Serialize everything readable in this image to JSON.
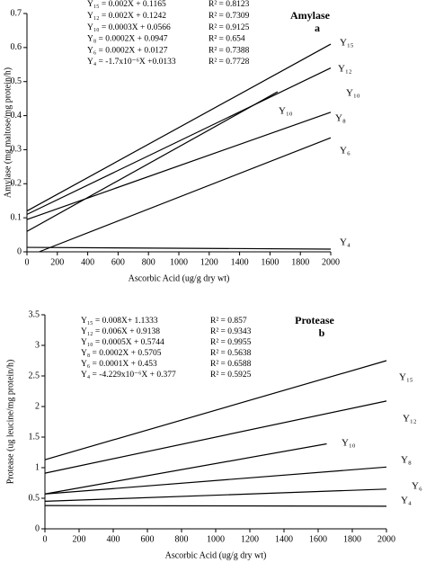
{
  "chart_data": [
    {
      "type": "line",
      "title": "Amylase",
      "subtitle": "a",
      "x_label": "Ascorbic Acid (ug/g dry wt)",
      "y_label": "Amylase (mg maltose/mg protein/h)",
      "xlim": [
        0,
        2000
      ],
      "xticks": [
        0,
        200,
        400,
        600,
        800,
        1000,
        1200,
        1400,
        1600,
        1800,
        2000
      ],
      "ylim": [
        0,
        0.7
      ],
      "yticks": [
        0,
        0.1,
        0.2,
        0.3,
        0.4,
        0.5,
        0.6,
        0.7
      ],
      "equations": [
        {
          "equation": "Y₁₅ = 0.002X + 0.1165",
          "r2": "R² = 0.8123"
        },
        {
          "equation": "Y₁₂ = 0.002X + 0.1242",
          "r2": "R² = 0.7309"
        },
        {
          "equation": "Y₁₀ = 0.0003X + 0.0566",
          "r2": "R² = 0.9125"
        },
        {
          "equation": "Y₈ = 0.0002X + 0.0947",
          "r2": "R² = 0.654"
        },
        {
          "equation": "Y₆ = 0.0002X + 0.0127",
          "r2": "R² = 0.7388"
        },
        {
          "equation": "Y₄ = -1.7x10⁻⁶X +0.0133",
          "r2": "R² = 0.7728"
        }
      ],
      "annotations": [
        "Y₁₀"
      ],
      "series": [
        {
          "name": "Y₁₅",
          "color": "#000000",
          "x": [
            0,
            2000
          ],
          "values": [
            0.12,
            0.61
          ]
        },
        {
          "name": "Y₁₂",
          "color": "#000000",
          "x": [
            0,
            2000
          ],
          "values": [
            0.11,
            0.54
          ]
        },
        {
          "name": "Y₁₀",
          "color": "#000000",
          "x": [
            0,
            1650
          ],
          "values": [
            0.06,
            0.47
          ]
        },
        {
          "name": "Y₈",
          "color": "#000000",
          "x": [
            0,
            2000
          ],
          "values": [
            0.095,
            0.41
          ]
        },
        {
          "name": "Y₆",
          "color": "#000000",
          "x": [
            80,
            2000
          ],
          "values": [
            0,
            0.335
          ]
        },
        {
          "name": "Y₄",
          "color": "#000000",
          "x": [
            0,
            2000
          ],
          "values": [
            0.013,
            0.008
          ]
        }
      ]
    },
    {
      "type": "line",
      "title": "Protease",
      "subtitle": "b",
      "x_label": "Ascorbic Acid (ug/g dry wt)",
      "y_label": "Protease (ug leucine/mg protein/h)",
      "xlim": [
        0,
        2000
      ],
      "xticks": [
        0,
        200,
        400,
        600,
        800,
        1000,
        1200,
        1400,
        1600,
        1800,
        2000
      ],
      "ylim": [
        0,
        3.5
      ],
      "yticks": [
        0,
        0.5,
        1,
        1.5,
        2,
        2.5,
        3,
        3.5
      ],
      "equations": [
        {
          "equation": "Y₁₅ = 0.008X+ 1.1333",
          "r2": "R² = 0.857"
        },
        {
          "equation": "Y₁₂ = 0.006X + 0.9138",
          "r2": "R² = 0.9343"
        },
        {
          "equation": "Y₁₀ = 0.0005X + 0.5744",
          "r2": "R² = 0.9955"
        },
        {
          "equation": "Y₈ = 0.0002X + 0.5705",
          "r2": "R² = 0.5638"
        },
        {
          "equation": "Y₆ = 0.0001X + 0.453",
          "r2": "R² = 0.6588"
        },
        {
          "equation": "Y₄ = -4.229x10⁻⁶X + 0.377",
          "r2": "R² = 0.5925"
        }
      ],
      "series": [
        {
          "name": "Y₁₅",
          "color": "#000000",
          "x": [
            0,
            2000
          ],
          "values": [
            1.13,
            2.75
          ]
        },
        {
          "name": "Y₁₂",
          "color": "#000000",
          "x": [
            0,
            2000
          ],
          "values": [
            0.91,
            2.09
          ]
        },
        {
          "name": "Y₁₀",
          "color": "#000000",
          "x": [
            0,
            1650
          ],
          "values": [
            0.57,
            1.39
          ]
        },
        {
          "name": "Y₈",
          "color": "#000000",
          "x": [
            0,
            2000
          ],
          "values": [
            0.57,
            1.01
          ]
        },
        {
          "name": "Y₆",
          "color": "#000000",
          "x": [
            0,
            2000
          ],
          "values": [
            0.45,
            0.65
          ]
        },
        {
          "name": "Y₄",
          "color": "#000000",
          "x": [
            0,
            2000
          ],
          "values": [
            0.38,
            0.37
          ]
        }
      ]
    }
  ]
}
